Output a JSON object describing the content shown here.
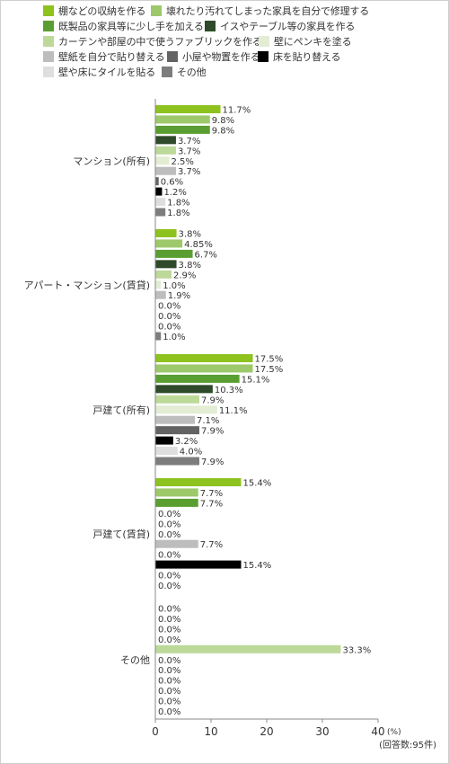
{
  "chart_data": {
    "type": "bar",
    "orientation": "horizontal",
    "xlabel": "(%)",
    "note": "(回答数:95件)",
    "xlim": [
      0,
      40
    ],
    "xticks": [
      0,
      10,
      20,
      30,
      40
    ],
    "value_suffix": "%",
    "categories": [
      "マンション(所有)",
      "アパート・マンション(賃貸)",
      "戸建て(所有)",
      "戸建て(賃貸)",
      "その他"
    ],
    "series": [
      {
        "name": "棚などの収納を作る",
        "color": "#8dc21f",
        "values": [
          11.7,
          3.8,
          17.5,
          15.4,
          0.0
        ]
      },
      {
        "name": "壊れたり汚れてしまった家具を自分で修理する",
        "color": "#9dc96a",
        "values": [
          9.8,
          4.85,
          17.5,
          7.7,
          0.0
        ]
      },
      {
        "name": "既製品の家具等に少し手を加える",
        "color": "#5a9e32",
        "values": [
          9.8,
          6.7,
          15.1,
          7.7,
          0.0
        ]
      },
      {
        "name": "イスやテーブル等の家具を作る",
        "color": "#2e4a2a",
        "values": [
          3.7,
          3.8,
          10.3,
          0.0,
          0.0
        ]
      },
      {
        "name": "カーテンや部屋の中で使うファブリックを作る",
        "color": "#bcd99a",
        "values": [
          3.7,
          2.9,
          7.9,
          0.0,
          33.3
        ]
      },
      {
        "name": "壁にペンキを塗る",
        "color": "#e2edd4",
        "values": [
          2.5,
          1.0,
          11.1,
          0.0,
          0.0
        ]
      },
      {
        "name": "壁紙を自分で貼り替える",
        "color": "#bdbdbd",
        "values": [
          3.7,
          1.9,
          7.1,
          7.7,
          0.0
        ]
      },
      {
        "name": "小屋や物置を作る",
        "color": "#636363",
        "values": [
          0.6,
          0.0,
          7.9,
          0.0,
          0.0
        ]
      },
      {
        "name": "床を貼り替える",
        "color": "#000000",
        "values": [
          1.2,
          0.0,
          3.2,
          15.4,
          0.0
        ]
      },
      {
        "name": "壁や床にタイルを貼る",
        "color": "#dedede",
        "values": [
          1.8,
          0.0,
          4.0,
          0.0,
          0.0
        ]
      },
      {
        "name": "その他",
        "color": "#7d7d7d",
        "values": [
          1.8,
          1.0,
          7.9,
          0.0,
          0.0
        ]
      }
    ],
    "grid": false,
    "legend_position": "top"
  }
}
